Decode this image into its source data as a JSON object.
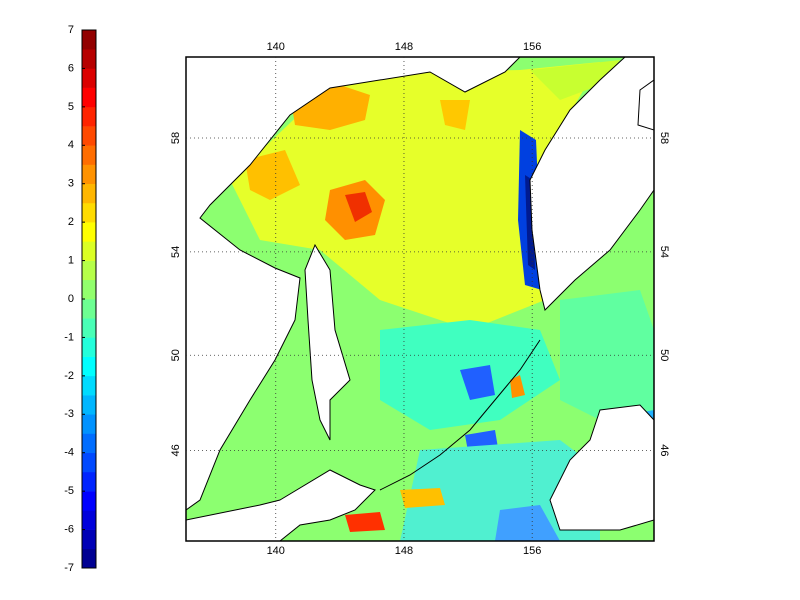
{
  "map": {
    "colorbar": {
      "range": [
        -7,
        7
      ],
      "ticks": [
        -7,
        -6,
        -5,
        -4,
        -3,
        -2,
        -1,
        0,
        1,
        2,
        3,
        4,
        5,
        6,
        7
      ]
    },
    "lon_range": [
      134.4,
      163.6
    ],
    "lat_range": [
      41.9,
      60.6
    ],
    "lon_ticks": [
      140,
      148,
      156
    ],
    "lat_ticks": [
      46,
      50,
      54,
      58
    ]
  }
}
